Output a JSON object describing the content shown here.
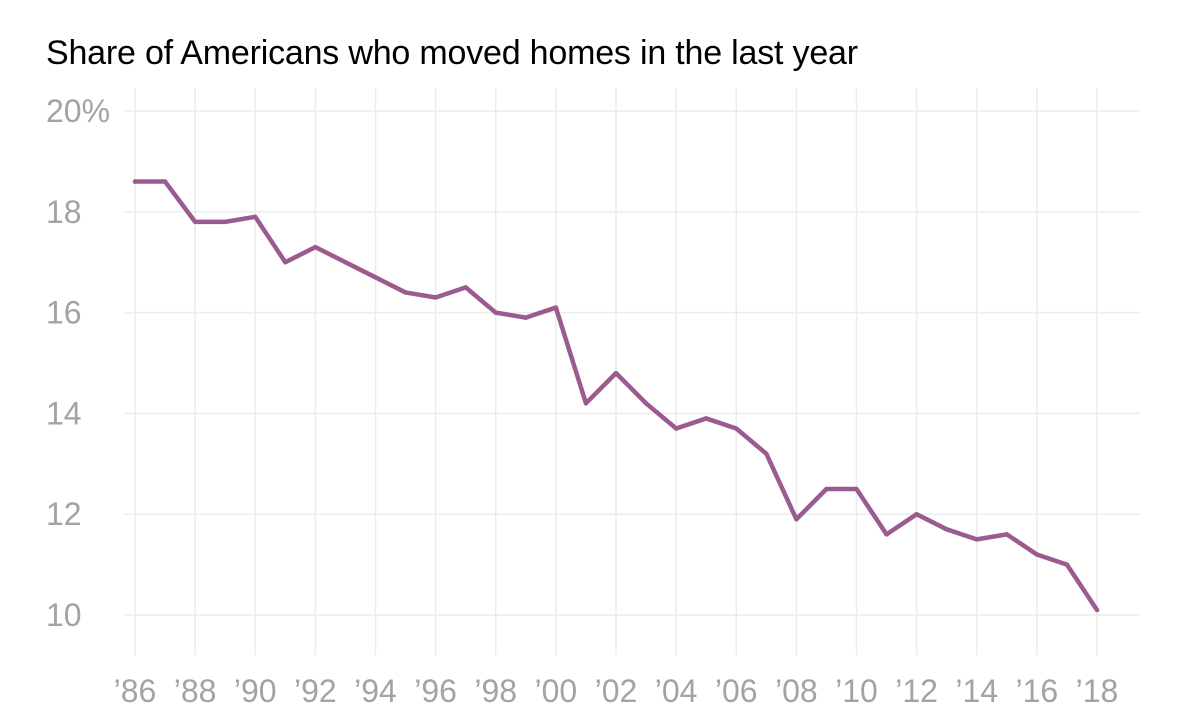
{
  "chart_data": {
    "type": "line",
    "title": "Share of Americans who moved homes in the last year",
    "xlabel": "",
    "ylabel": "",
    "x": [
      1986,
      1987,
      1988,
      1989,
      1990,
      1991,
      1992,
      1993,
      1994,
      1995,
      1996,
      1997,
      1998,
      1999,
      2000,
      2001,
      2002,
      2003,
      2004,
      2005,
      2006,
      2007,
      2008,
      2009,
      2010,
      2011,
      2012,
      2013,
      2014,
      2015,
      2016,
      2017,
      2018
    ],
    "series": [
      {
        "values": [
          18.6,
          18.6,
          17.8,
          17.8,
          17.9,
          17.0,
          17.3,
          17.0,
          16.7,
          16.4,
          16.3,
          16.5,
          16.0,
          15.9,
          16.1,
          14.2,
          14.8,
          14.2,
          13.7,
          13.9,
          13.7,
          13.2,
          11.9,
          12.5,
          12.5,
          11.6,
          12.0,
          11.7,
          11.5,
          11.6,
          11.2,
          11.0,
          10.1
        ],
        "color": "#9b5b8e"
      }
    ],
    "ylim": [
      10,
      20
    ],
    "xlim": [
      1986,
      2018
    ],
    "y_ticks": [
      {
        "value": 20,
        "label": "20%"
      },
      {
        "value": 18,
        "label": "18"
      },
      {
        "value": 16,
        "label": "16"
      },
      {
        "value": 14,
        "label": "14"
      },
      {
        "value": 12,
        "label": "12"
      },
      {
        "value": 10,
        "label": "10"
      }
    ],
    "x_ticks": [
      {
        "value": 1986,
        "label": "’86"
      },
      {
        "value": 1988,
        "label": "’88"
      },
      {
        "value": 1990,
        "label": "’90"
      },
      {
        "value": 1992,
        "label": "’92"
      },
      {
        "value": 1994,
        "label": "’94"
      },
      {
        "value": 1996,
        "label": "’96"
      },
      {
        "value": 1998,
        "label": "’98"
      },
      {
        "value": 2000,
        "label": "’00"
      },
      {
        "value": 2002,
        "label": "’02"
      },
      {
        "value": 2004,
        "label": "’04"
      },
      {
        "value": 2006,
        "label": "’06"
      },
      {
        "value": 2008,
        "label": "’08"
      },
      {
        "value": 2010,
        "label": "’10"
      },
      {
        "value": 2012,
        "label": "’12"
      },
      {
        "value": 2014,
        "label": "’14"
      },
      {
        "value": 2016,
        "label": "’16"
      },
      {
        "value": 2018,
        "label": "’18"
      }
    ],
    "grid": true,
    "legend": "none"
  }
}
